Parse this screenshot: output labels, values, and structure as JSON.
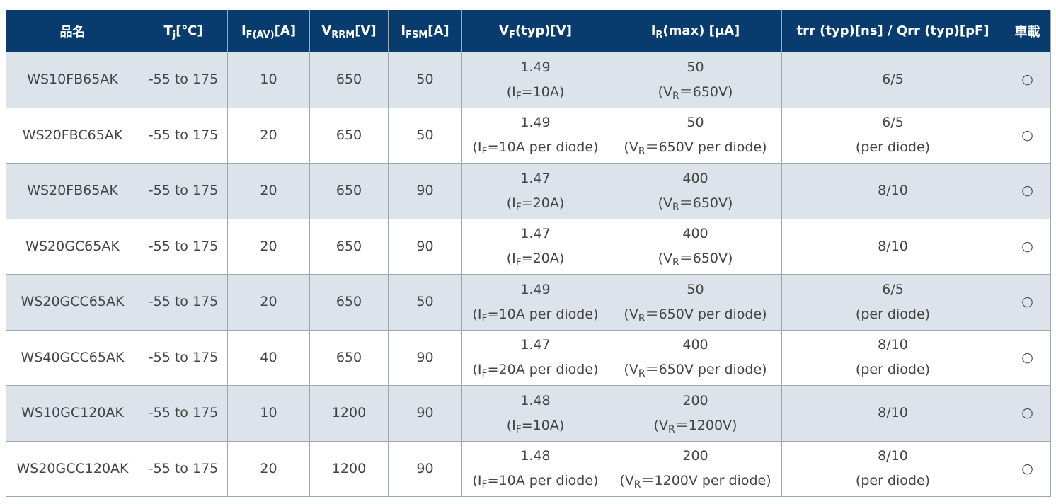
{
  "table": {
    "header": [
      {
        "text": "品名"
      },
      {
        "main": "T",
        "sub": "j",
        "unit": "[℃]"
      },
      {
        "main": "I",
        "sub": "F(AV)",
        "unit": "[A]"
      },
      {
        "main": "V",
        "sub": "RRM",
        "unit": "[V]"
      },
      {
        "main": "I",
        "sub": "FSM",
        "unit": "[A]"
      },
      {
        "main": "V",
        "sub": "F",
        "unit": "(typ)[V]"
      },
      {
        "main": "I",
        "sub": "R",
        "unit": "(max) [μA]"
      },
      {
        "text": "trr (typ)[ns] / Qrr (typ)[pF]"
      },
      {
        "text": "車載"
      }
    ],
    "rows": [
      [
        "WS10FB65AK",
        "-55 to 175",
        10,
        650,
        50,
        {
          "value": 1.49,
          "note": {
            "pre": "(I",
            "sub": "F",
            "post": "=10A)"
          }
        },
        {
          "value": 50,
          "note": {
            "pre": "(V",
            "sub": "R",
            "post": "＝650V)"
          }
        },
        "6/5",
        "○"
      ],
      [
        "WS20FBC65AK",
        "-55 to 175",
        20,
        650,
        50,
        {
          "value": 1.49,
          "note": {
            "pre": "(I",
            "sub": "F",
            "post": "=10A per diode)"
          }
        },
        {
          "value": 50,
          "note": {
            "pre": "(V",
            "sub": "R",
            "post": "＝650V per diode)"
          }
        },
        {
          "value": "6/5",
          "note": "(per diode)"
        },
        "○"
      ],
      [
        "WS20FB65AK",
        "-55 to 175",
        20,
        650,
        90,
        {
          "value": 1.47,
          "note": {
            "pre": "(I",
            "sub": "F",
            "post": "=20A)"
          }
        },
        {
          "value": 400,
          "note": {
            "pre": "(V",
            "sub": "R",
            "post": "＝650V)"
          }
        },
        "8/10",
        "○"
      ],
      [
        "WS20GC65AK",
        "-55 to 175",
        20,
        650,
        90,
        {
          "value": 1.47,
          "note": {
            "pre": "(I",
            "sub": "F",
            "post": "=20A)"
          }
        },
        {
          "value": 400,
          "note": {
            "pre": "(V",
            "sub": "R",
            "post": "＝650V)"
          }
        },
        "8/10",
        "○"
      ],
      [
        "WS20GCC65AK",
        "-55 to 175",
        20,
        650,
        50,
        {
          "value": 1.49,
          "note": {
            "pre": "(I",
            "sub": "F",
            "post": "=10A per diode)"
          }
        },
        {
          "value": 50,
          "note": {
            "pre": "(V",
            "sub": "R",
            "post": "＝650V per diode)"
          }
        },
        {
          "value": "6/5",
          "note": "(per diode)"
        },
        "○"
      ],
      [
        "WS40GCC65AK",
        "-55 to 175",
        40,
        650,
        90,
        {
          "value": 1.47,
          "note": {
            "pre": "(I",
            "sub": "F",
            "post": "=20A per diode)"
          }
        },
        {
          "value": 400,
          "note": {
            "pre": "(V",
            "sub": "R",
            "post": "＝650V per diode)"
          }
        },
        {
          "value": "8/10",
          "note": "(per diode)"
        },
        "○"
      ],
      [
        "WS10GC120AK",
        "-55 to 175",
        10,
        1200,
        90,
        {
          "value": 1.48,
          "note": {
            "pre": "(I",
            "sub": "F",
            "post": "=10A)"
          }
        },
        {
          "value": 200,
          "note": {
            "pre": "(V",
            "sub": "R",
            "post": "＝1200V)"
          }
        },
        "8/10",
        "○"
      ],
      [
        "WS20GCC120AK",
        "-55 to 175",
        20,
        1200,
        90,
        {
          "value": 1.48,
          "note": {
            "pre": "(I",
            "sub": "F",
            "post": "=10A per diode)"
          }
        },
        {
          "value": 200,
          "note": {
            "pre": "(V",
            "sub": "R",
            "post": "＝1200V per diode)"
          }
        },
        {
          "value": "8/10",
          "note": "(per diode)"
        },
        "○"
      ]
    ]
  }
}
